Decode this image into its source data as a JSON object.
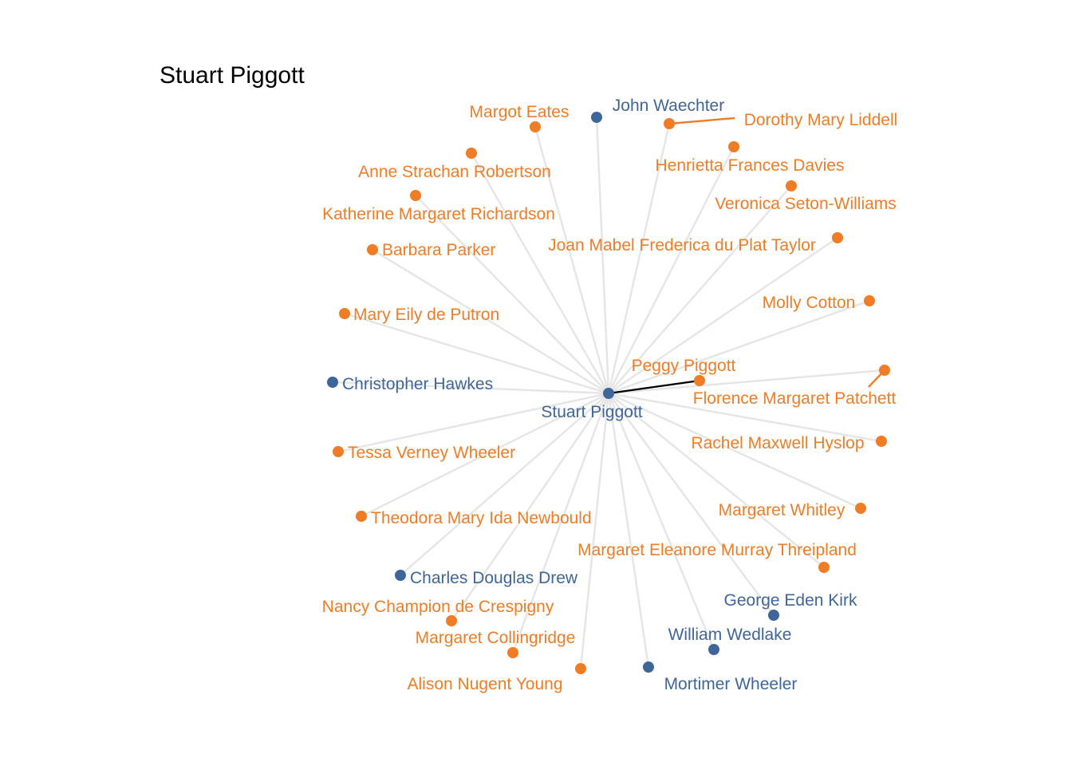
{
  "title": "Stuart Piggott",
  "colors": {
    "male": "#3e6699",
    "female": "#f07c26",
    "edge": "#e5e5e5",
    "highlight": "#000000"
  },
  "center": {
    "id": "stuart",
    "label": "Stuart Piggott",
    "group": "male"
  },
  "nodes": [
    {
      "id": "margot",
      "label": "Margot Eates",
      "group": "female"
    },
    {
      "id": "waechter",
      "label": "John Waechter",
      "group": "male"
    },
    {
      "id": "liddell",
      "label": "Dorothy Mary Liddell",
      "group": "female"
    },
    {
      "id": "robertson",
      "label": "Anne Strachan Robertson",
      "group": "female"
    },
    {
      "id": "davies",
      "label": "Henrietta Frances Davies",
      "group": "female"
    },
    {
      "id": "richardson",
      "label": "Katherine Margaret Richardson",
      "group": "female"
    },
    {
      "id": "setonwilliams",
      "label": "Veronica Seton-Williams",
      "group": "female"
    },
    {
      "id": "parker",
      "label": "Barbara Parker",
      "group": "female"
    },
    {
      "id": "taylor",
      "label": "Joan Mabel Frederica du Plat Taylor",
      "group": "female"
    },
    {
      "id": "cotton",
      "label": "Molly Cotton",
      "group": "female"
    },
    {
      "id": "putron",
      "label": "Mary Eily de Putron",
      "group": "female"
    },
    {
      "id": "peggy",
      "label": "Peggy Piggott",
      "group": "female"
    },
    {
      "id": "hawkes",
      "label": "Christopher Hawkes",
      "group": "male"
    },
    {
      "id": "patchett",
      "label": "Florence Margaret Patchett",
      "group": "female"
    },
    {
      "id": "hyslop",
      "label": "Rachel Maxwell Hyslop",
      "group": "female"
    },
    {
      "id": "tessa",
      "label": "Tessa Verney Wheeler",
      "group": "female"
    },
    {
      "id": "whitley",
      "label": "Margaret Whitley",
      "group": "female"
    },
    {
      "id": "newbould",
      "label": "Theodora Mary Ida Newbould",
      "group": "female"
    },
    {
      "id": "threipland",
      "label": "Margaret Eleanore Murray Threipland",
      "group": "female"
    },
    {
      "id": "drew",
      "label": "Charles Douglas Drew",
      "group": "male"
    },
    {
      "id": "kirk",
      "label": "George Eden Kirk",
      "group": "male"
    },
    {
      "id": "crespigny",
      "label": "Nancy Champion de Crespigny",
      "group": "female"
    },
    {
      "id": "wedlake",
      "label": "William Wedlake",
      "group": "male"
    },
    {
      "id": "collingridge",
      "label": "Margaret Collingridge",
      "group": "female"
    },
    {
      "id": "young",
      "label": "Alison Nugent Young",
      "group": "female"
    },
    {
      "id": "mortimer",
      "label": "Mortimer Wheeler",
      "group": "male"
    }
  ],
  "edges": [
    {
      "from": "stuart",
      "to": "margot"
    },
    {
      "from": "stuart",
      "to": "waechter"
    },
    {
      "from": "stuart",
      "to": "liddell"
    },
    {
      "from": "stuart",
      "to": "robertson"
    },
    {
      "from": "stuart",
      "to": "davies"
    },
    {
      "from": "stuart",
      "to": "richardson"
    },
    {
      "from": "stuart",
      "to": "setonwilliams"
    },
    {
      "from": "stuart",
      "to": "parker"
    },
    {
      "from": "stuart",
      "to": "taylor"
    },
    {
      "from": "stuart",
      "to": "cotton"
    },
    {
      "from": "stuart",
      "to": "putron"
    },
    {
      "from": "stuart",
      "to": "peggy",
      "highlight": true
    },
    {
      "from": "stuart",
      "to": "hawkes"
    },
    {
      "from": "stuart",
      "to": "patchett"
    },
    {
      "from": "stuart",
      "to": "hyslop"
    },
    {
      "from": "stuart",
      "to": "tessa"
    },
    {
      "from": "stuart",
      "to": "whitley"
    },
    {
      "from": "stuart",
      "to": "newbould"
    },
    {
      "from": "stuart",
      "to": "threipland"
    },
    {
      "from": "stuart",
      "to": "drew"
    },
    {
      "from": "stuart",
      "to": "kirk"
    },
    {
      "from": "stuart",
      "to": "crespigny"
    },
    {
      "from": "stuart",
      "to": "wedlake"
    },
    {
      "from": "stuart",
      "to": "collingridge"
    },
    {
      "from": "stuart",
      "to": "young"
    },
    {
      "from": "stuart",
      "to": "mortimer"
    }
  ]
}
